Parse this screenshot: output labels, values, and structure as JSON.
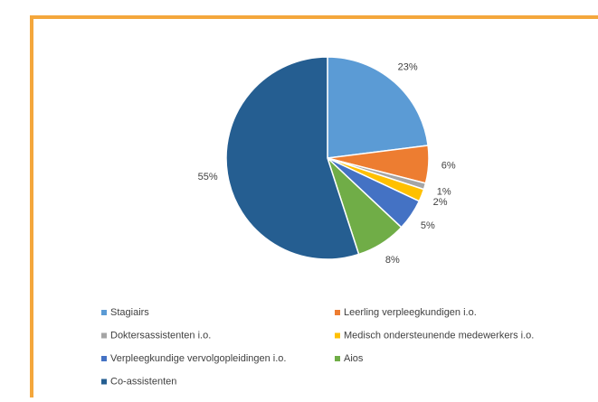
{
  "chart_data": {
    "type": "pie",
    "categories": [
      "Stagiairs",
      "Leerling verpleegkundigen i.o.",
      "Doktersassistenten i.o.",
      "Medisch ondersteunende medewerkers i.o.",
      "Verpleegkundige vervolgopleidingen i.o.",
      "Aios",
      "Co-assistenten"
    ],
    "values": [
      23,
      6,
      1,
      2,
      5,
      8,
      55
    ],
    "value_labels": [
      "23%",
      "6%",
      "1%",
      "2%",
      "5%",
      "8%",
      "55%"
    ],
    "colors": [
      "#5b9bd5",
      "#ed7d31",
      "#a5a5a5",
      "#ffc000",
      "#4472c4",
      "#70ad47",
      "#255e91"
    ],
    "legend": "bottom"
  }
}
